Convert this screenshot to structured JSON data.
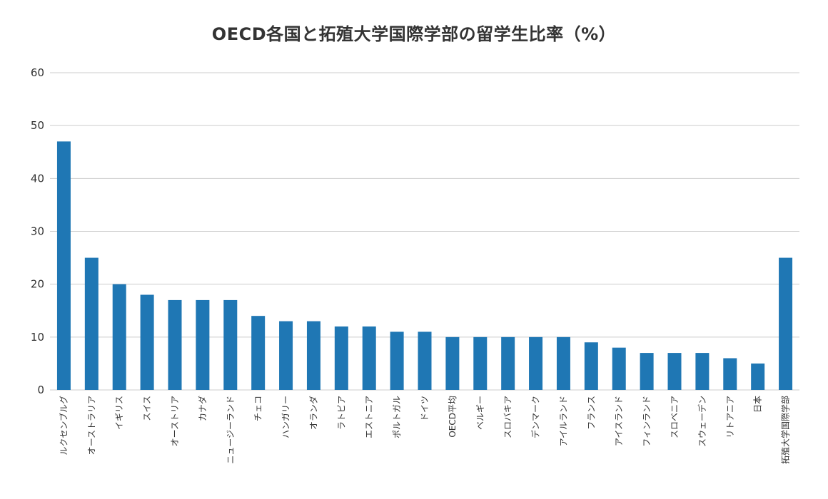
{
  "chart_data": {
    "type": "bar",
    "title": "OECD各国と拓殖大学国際学部の留学生比率（%）",
    "xlabel": "",
    "ylabel": "",
    "ylim": [
      0,
      60
    ],
    "yticks": [
      0,
      10,
      20,
      30,
      40,
      50,
      60
    ],
    "grid": true,
    "bar_color": "#1f77b4",
    "grid_color": "#cccccc",
    "categories": [
      "ルクセンブルグ",
      "オーストラリア",
      "イギリス",
      "スイス",
      "オーストリア",
      "カナダ",
      "ニュージーランド",
      "チェコ",
      "ハンガリー",
      "オランダ",
      "ラトビア",
      "エストニア",
      "ポルトガル",
      "ドイツ",
      "OECD平均",
      "ベルギー",
      "スロバキア",
      "デンマーク",
      "アイルランド",
      "フランス",
      "アイスランド",
      "フィンランド",
      "スロベニア",
      "スウェーデン",
      "リトアニア",
      "日本",
      "拓殖大学国際学部"
    ],
    "values": [
      47,
      25,
      20,
      18,
      17,
      17,
      17,
      14,
      13,
      13,
      12,
      12,
      11,
      11,
      10,
      10,
      10,
      10,
      10,
      9,
      8,
      7,
      7,
      7,
      6,
      5,
      25
    ]
  }
}
